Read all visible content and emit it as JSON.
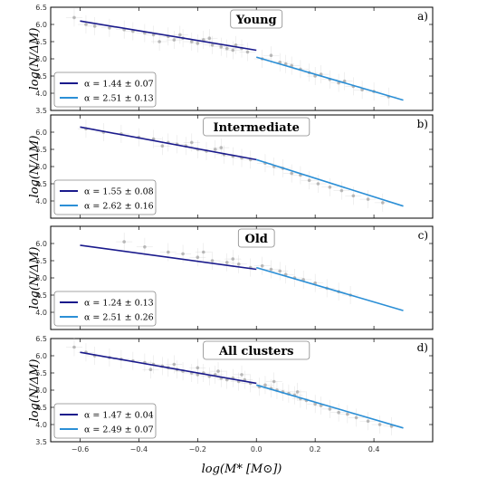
{
  "figure": {
    "xlabel": "log(M* [M⊙])",
    "ylabel": "log(N/ΔM)"
  },
  "chart_data": [
    {
      "type": "scatter",
      "panel": "a)",
      "title": "Young",
      "xlim": [
        -0.7,
        0.6
      ],
      "ylim": [
        3.5,
        6.5
      ],
      "xticks": [
        -0.6,
        -0.4,
        -0.2,
        0.0,
        0.2,
        0.4
      ],
      "yticks": [
        3.5,
        4.0,
        4.5,
        5.0,
        5.5,
        6.0,
        6.5
      ],
      "fits": [
        {
          "label": "α = 1.44 ± 0.07",
          "color": "#1a1a8c",
          "x": [
            -0.6,
            0.0
          ],
          "y": [
            6.1,
            5.25
          ]
        },
        {
          "label": "α = 2.51 ± 0.13",
          "color": "#2b8fd6",
          "x": [
            0.0,
            0.5
          ],
          "y": [
            5.05,
            3.8
          ]
        }
      ],
      "legend_position": "lower-left",
      "points": [
        [
          -0.62,
          6.2
        ],
        [
          -0.58,
          6.0
        ],
        [
          -0.55,
          5.95
        ],
        [
          -0.5,
          5.9
        ],
        [
          -0.45,
          5.85
        ],
        [
          -0.42,
          5.8
        ],
        [
          -0.38,
          5.75
        ],
        [
          -0.35,
          5.7
        ],
        [
          -0.3,
          5.65
        ],
        [
          -0.28,
          5.55
        ],
        [
          -0.25,
          5.6
        ],
        [
          -0.22,
          5.5
        ],
        [
          -0.2,
          5.45
        ],
        [
          -0.18,
          5.55
        ],
        [
          -0.15,
          5.4
        ],
        [
          -0.12,
          5.35
        ],
        [
          -0.1,
          5.3
        ],
        [
          -0.08,
          5.25
        ],
        [
          -0.05,
          5.3
        ],
        [
          -0.03,
          5.2
        ],
        [
          0.02,
          5.0
        ],
        [
          0.05,
          5.1
        ],
        [
          0.08,
          4.9
        ],
        [
          0.1,
          4.85
        ],
        [
          0.12,
          4.8
        ],
        [
          0.15,
          4.7
        ],
        [
          0.18,
          4.6
        ],
        [
          0.2,
          4.5
        ],
        [
          0.22,
          4.55
        ],
        [
          0.25,
          4.4
        ],
        [
          0.28,
          4.3
        ],
        [
          0.3,
          4.35
        ],
        [
          0.33,
          4.2
        ],
        [
          0.36,
          4.1
        ],
        [
          0.4,
          4.05
        ],
        [
          0.45,
          3.9
        ],
        [
          -0.33,
          5.5
        ],
        [
          -0.26,
          5.7
        ],
        [
          -0.16,
          5.6
        ],
        [
          -0.07,
          5.4
        ]
      ]
    },
    {
      "type": "scatter",
      "panel": "b)",
      "title": "Intermediate",
      "xlim": [
        -0.7,
        0.6
      ],
      "ylim": [
        3.5,
        6.5
      ],
      "xticks": [
        -0.6,
        -0.4,
        -0.2,
        0.0,
        0.2,
        0.4
      ],
      "yticks": [
        4.0,
        4.5,
        5.0,
        5.5,
        6.0
      ],
      "fits": [
        {
          "label": "α = 1.55 ± 0.08",
          "color": "#1a1a8c",
          "x": [
            -0.6,
            0.0
          ],
          "y": [
            6.15,
            5.2
          ]
        },
        {
          "label": "α = 2.62 ± 0.16",
          "color": "#2b8fd6",
          "x": [
            0.0,
            0.5
          ],
          "y": [
            5.2,
            3.85
          ]
        }
      ],
      "legend_position": "lower-left",
      "points": [
        [
          -0.58,
          6.1
        ],
        [
          -0.52,
          6.0
        ],
        [
          -0.46,
          5.95
        ],
        [
          -0.4,
          5.85
        ],
        [
          -0.35,
          5.8
        ],
        [
          -0.3,
          5.7
        ],
        [
          -0.27,
          5.65
        ],
        [
          -0.24,
          5.6
        ],
        [
          -0.2,
          5.5
        ],
        [
          -0.17,
          5.45
        ],
        [
          -0.14,
          5.5
        ],
        [
          -0.11,
          5.35
        ],
        [
          -0.08,
          5.3
        ],
        [
          -0.05,
          5.25
        ],
        [
          -0.02,
          5.2
        ],
        [
          0.03,
          5.1
        ],
        [
          0.06,
          5.0
        ],
        [
          0.09,
          4.95
        ],
        [
          0.12,
          4.8
        ],
        [
          0.15,
          4.75
        ],
        [
          0.18,
          4.6
        ],
        [
          0.21,
          4.5
        ],
        [
          0.25,
          4.4
        ],
        [
          0.29,
          4.3
        ],
        [
          0.33,
          4.15
        ],
        [
          0.38,
          4.05
        ],
        [
          0.43,
          3.95
        ],
        [
          -0.32,
          5.6
        ],
        [
          -0.22,
          5.7
        ],
        [
          -0.12,
          5.55
        ]
      ]
    },
    {
      "type": "scatter",
      "panel": "c)",
      "title": "Old",
      "xlim": [
        -0.7,
        0.6
      ],
      "ylim": [
        3.5,
        6.5
      ],
      "xticks": [
        -0.6,
        -0.4,
        -0.2,
        0.0,
        0.2,
        0.4
      ],
      "yticks": [
        4.0,
        4.5,
        5.0,
        5.5,
        6.0
      ],
      "fits": [
        {
          "label": "α = 1.24 ± 0.13",
          "color": "#1a1a8c",
          "x": [
            -0.6,
            0.0
          ],
          "y": [
            5.95,
            5.25
          ]
        },
        {
          "label": "α = 2.51 ± 0.26",
          "color": "#2b8fd6",
          "x": [
            0.0,
            0.5
          ],
          "y": [
            5.3,
            4.05
          ]
        }
      ],
      "legend_position": "lower-left",
      "points": [
        [
          -0.45,
          6.05
        ],
        [
          -0.38,
          5.9
        ],
        [
          -0.3,
          5.75
        ],
        [
          -0.25,
          5.7
        ],
        [
          -0.2,
          5.6
        ],
        [
          -0.15,
          5.5
        ],
        [
          -0.1,
          5.45
        ],
        [
          -0.06,
          5.4
        ],
        [
          -0.02,
          5.3
        ],
        [
          0.02,
          5.35
        ],
        [
          0.05,
          5.25
        ],
        [
          0.08,
          5.2
        ],
        [
          0.1,
          5.1
        ],
        [
          0.13,
          5.0
        ],
        [
          0.16,
          4.95
        ],
        [
          0.2,
          4.85
        ],
        [
          0.24,
          4.7
        ],
        [
          0.28,
          4.6
        ],
        [
          0.32,
          4.5
        ],
        [
          -0.18,
          5.75
        ],
        [
          -0.08,
          5.55
        ]
      ]
    },
    {
      "type": "scatter",
      "panel": "d)",
      "title": "All clusters",
      "xlim": [
        -0.7,
        0.6
      ],
      "ylim": [
        3.5,
        6.5
      ],
      "xticks": [
        -0.6,
        -0.4,
        -0.2,
        0.0,
        0.2,
        0.4
      ],
      "yticks": [
        3.5,
        4.0,
        4.5,
        5.0,
        5.5,
        6.0,
        6.5
      ],
      "fits": [
        {
          "label": "α = 1.47 ± 0.04",
          "color": "#1a1a8c",
          "x": [
            -0.6,
            0.0
          ],
          "y": [
            6.1,
            5.2
          ]
        },
        {
          "label": "α = 2.49 ± 0.07",
          "color": "#2b8fd6",
          "x": [
            0.0,
            0.5
          ],
          "y": [
            5.15,
            3.9
          ]
        }
      ],
      "legend_position": "lower-left",
      "points": [
        [
          -0.62,
          6.25
        ],
        [
          -0.58,
          6.1
        ],
        [
          -0.55,
          6.0
        ],
        [
          -0.5,
          5.95
        ],
        [
          -0.46,
          5.9
        ],
        [
          -0.42,
          5.85
        ],
        [
          -0.38,
          5.8
        ],
        [
          -0.35,
          5.75
        ],
        [
          -0.32,
          5.7
        ],
        [
          -0.3,
          5.65
        ],
        [
          -0.27,
          5.6
        ],
        [
          -0.25,
          5.55
        ],
        [
          -0.22,
          5.5
        ],
        [
          -0.2,
          5.45
        ],
        [
          -0.18,
          5.5
        ],
        [
          -0.16,
          5.4
        ],
        [
          -0.14,
          5.45
        ],
        [
          -0.12,
          5.35
        ],
        [
          -0.1,
          5.3
        ],
        [
          -0.08,
          5.35
        ],
        [
          -0.06,
          5.25
        ],
        [
          -0.04,
          5.3
        ],
        [
          -0.02,
          5.2
        ],
        [
          0.01,
          5.1
        ],
        [
          0.03,
          5.15
        ],
        [
          0.05,
          5.05
        ],
        [
          0.07,
          5.0
        ],
        [
          0.09,
          4.95
        ],
        [
          0.11,
          4.9
        ],
        [
          0.13,
          4.85
        ],
        [
          0.15,
          4.75
        ],
        [
          0.17,
          4.7
        ],
        [
          0.2,
          4.6
        ],
        [
          0.22,
          4.55
        ],
        [
          0.25,
          4.45
        ],
        [
          0.28,
          4.35
        ],
        [
          0.31,
          4.3
        ],
        [
          0.34,
          4.2
        ],
        [
          0.38,
          4.1
        ],
        [
          0.42,
          4.0
        ],
        [
          0.46,
          3.95
        ],
        [
          -0.36,
          5.6
        ],
        [
          -0.28,
          5.75
        ],
        [
          -0.2,
          5.65
        ],
        [
          -0.13,
          5.55
        ],
        [
          -0.05,
          5.45
        ],
        [
          0.06,
          5.25
        ],
        [
          0.14,
          4.95
        ]
      ]
    }
  ]
}
